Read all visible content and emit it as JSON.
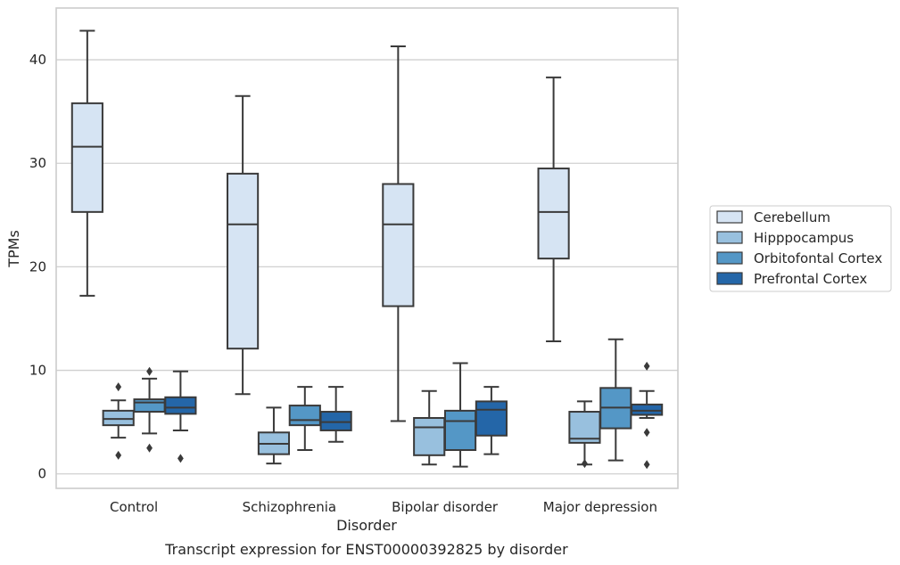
{
  "chart_data": {
    "type": "box",
    "title": "",
    "caption": "Transcript expression for ENST00000392825 by disorder",
    "xlabel": "Disorder",
    "ylabel": "TPMs",
    "ylim": [
      -1.4,
      45
    ],
    "yticks": [
      0,
      10,
      20,
      30,
      40
    ],
    "grid": "horizontal",
    "legend_position": "right",
    "categories": [
      "Control",
      "Schizophrenia",
      "Bipolar disorder",
      "Major depression"
    ],
    "series": [
      {
        "name": "Cerebellum",
        "color": "#d6e4f3",
        "boxes": [
          {
            "whisker_low": 17.2,
            "q1": 25.3,
            "median": 31.6,
            "q3": 35.8,
            "whisker_high": 42.8,
            "outliers": []
          },
          {
            "whisker_low": 7.7,
            "q1": 12.1,
            "median": 24.1,
            "q3": 29.0,
            "whisker_high": 36.5,
            "outliers": []
          },
          {
            "whisker_low": 5.1,
            "q1": 16.2,
            "median": 24.1,
            "q3": 28.0,
            "whisker_high": 41.3,
            "outliers": []
          },
          {
            "whisker_low": 12.8,
            "q1": 20.8,
            "median": 25.3,
            "q3": 29.5,
            "whisker_high": 38.3,
            "outliers": []
          }
        ]
      },
      {
        "name": "Hipppocampus",
        "color": "#98c0de",
        "boxes": [
          {
            "whisker_low": 3.5,
            "q1": 4.7,
            "median": 5.3,
            "q3": 6.1,
            "whisker_high": 7.1,
            "outliers": [
              8.4,
              1.8
            ]
          },
          {
            "whisker_low": 1.0,
            "q1": 1.9,
            "median": 2.9,
            "q3": 4.0,
            "whisker_high": 6.4,
            "outliers": []
          },
          {
            "whisker_low": 0.9,
            "q1": 1.8,
            "median": 4.5,
            "q3": 5.4,
            "whisker_high": 8.0,
            "outliers": []
          },
          {
            "whisker_low": 0.9,
            "q1": 3.0,
            "median": 3.4,
            "q3": 6.0,
            "whisker_high": 7.0,
            "outliers": [
              1.0
            ]
          }
        ]
      },
      {
        "name": "Orbitofontal Cortex",
        "color": "#5497c6",
        "boxes": [
          {
            "whisker_low": 3.9,
            "q1": 6.0,
            "median": 6.9,
            "q3": 7.2,
            "whisker_high": 9.2,
            "outliers": [
              9.9,
              2.5
            ]
          },
          {
            "whisker_low": 2.3,
            "q1": 4.7,
            "median": 5.2,
            "q3": 6.6,
            "whisker_high": 8.4,
            "outliers": []
          },
          {
            "whisker_low": 0.7,
            "q1": 2.3,
            "median": 5.1,
            "q3": 6.1,
            "whisker_high": 10.7,
            "outliers": []
          },
          {
            "whisker_low": 1.3,
            "q1": 4.4,
            "median": 6.4,
            "q3": 8.3,
            "whisker_high": 13.0,
            "outliers": []
          }
        ]
      },
      {
        "name": "Prefrontal Cortex",
        "color": "#2466a8",
        "boxes": [
          {
            "whisker_low": 4.2,
            "q1": 5.8,
            "median": 6.4,
            "q3": 7.4,
            "whisker_high": 9.9,
            "outliers": [
              1.5
            ]
          },
          {
            "whisker_low": 3.1,
            "q1": 4.2,
            "median": 5.0,
            "q3": 6.0,
            "whisker_high": 8.4,
            "outliers": []
          },
          {
            "whisker_low": 1.9,
            "q1": 3.7,
            "median": 6.2,
            "q3": 7.0,
            "whisker_high": 8.4,
            "outliers": []
          },
          {
            "whisker_low": 5.4,
            "q1": 5.7,
            "median": 6.1,
            "q3": 6.7,
            "whisker_high": 8.0,
            "outliers": [
              10.4,
              4.0,
              0.9
            ]
          }
        ]
      }
    ]
  }
}
